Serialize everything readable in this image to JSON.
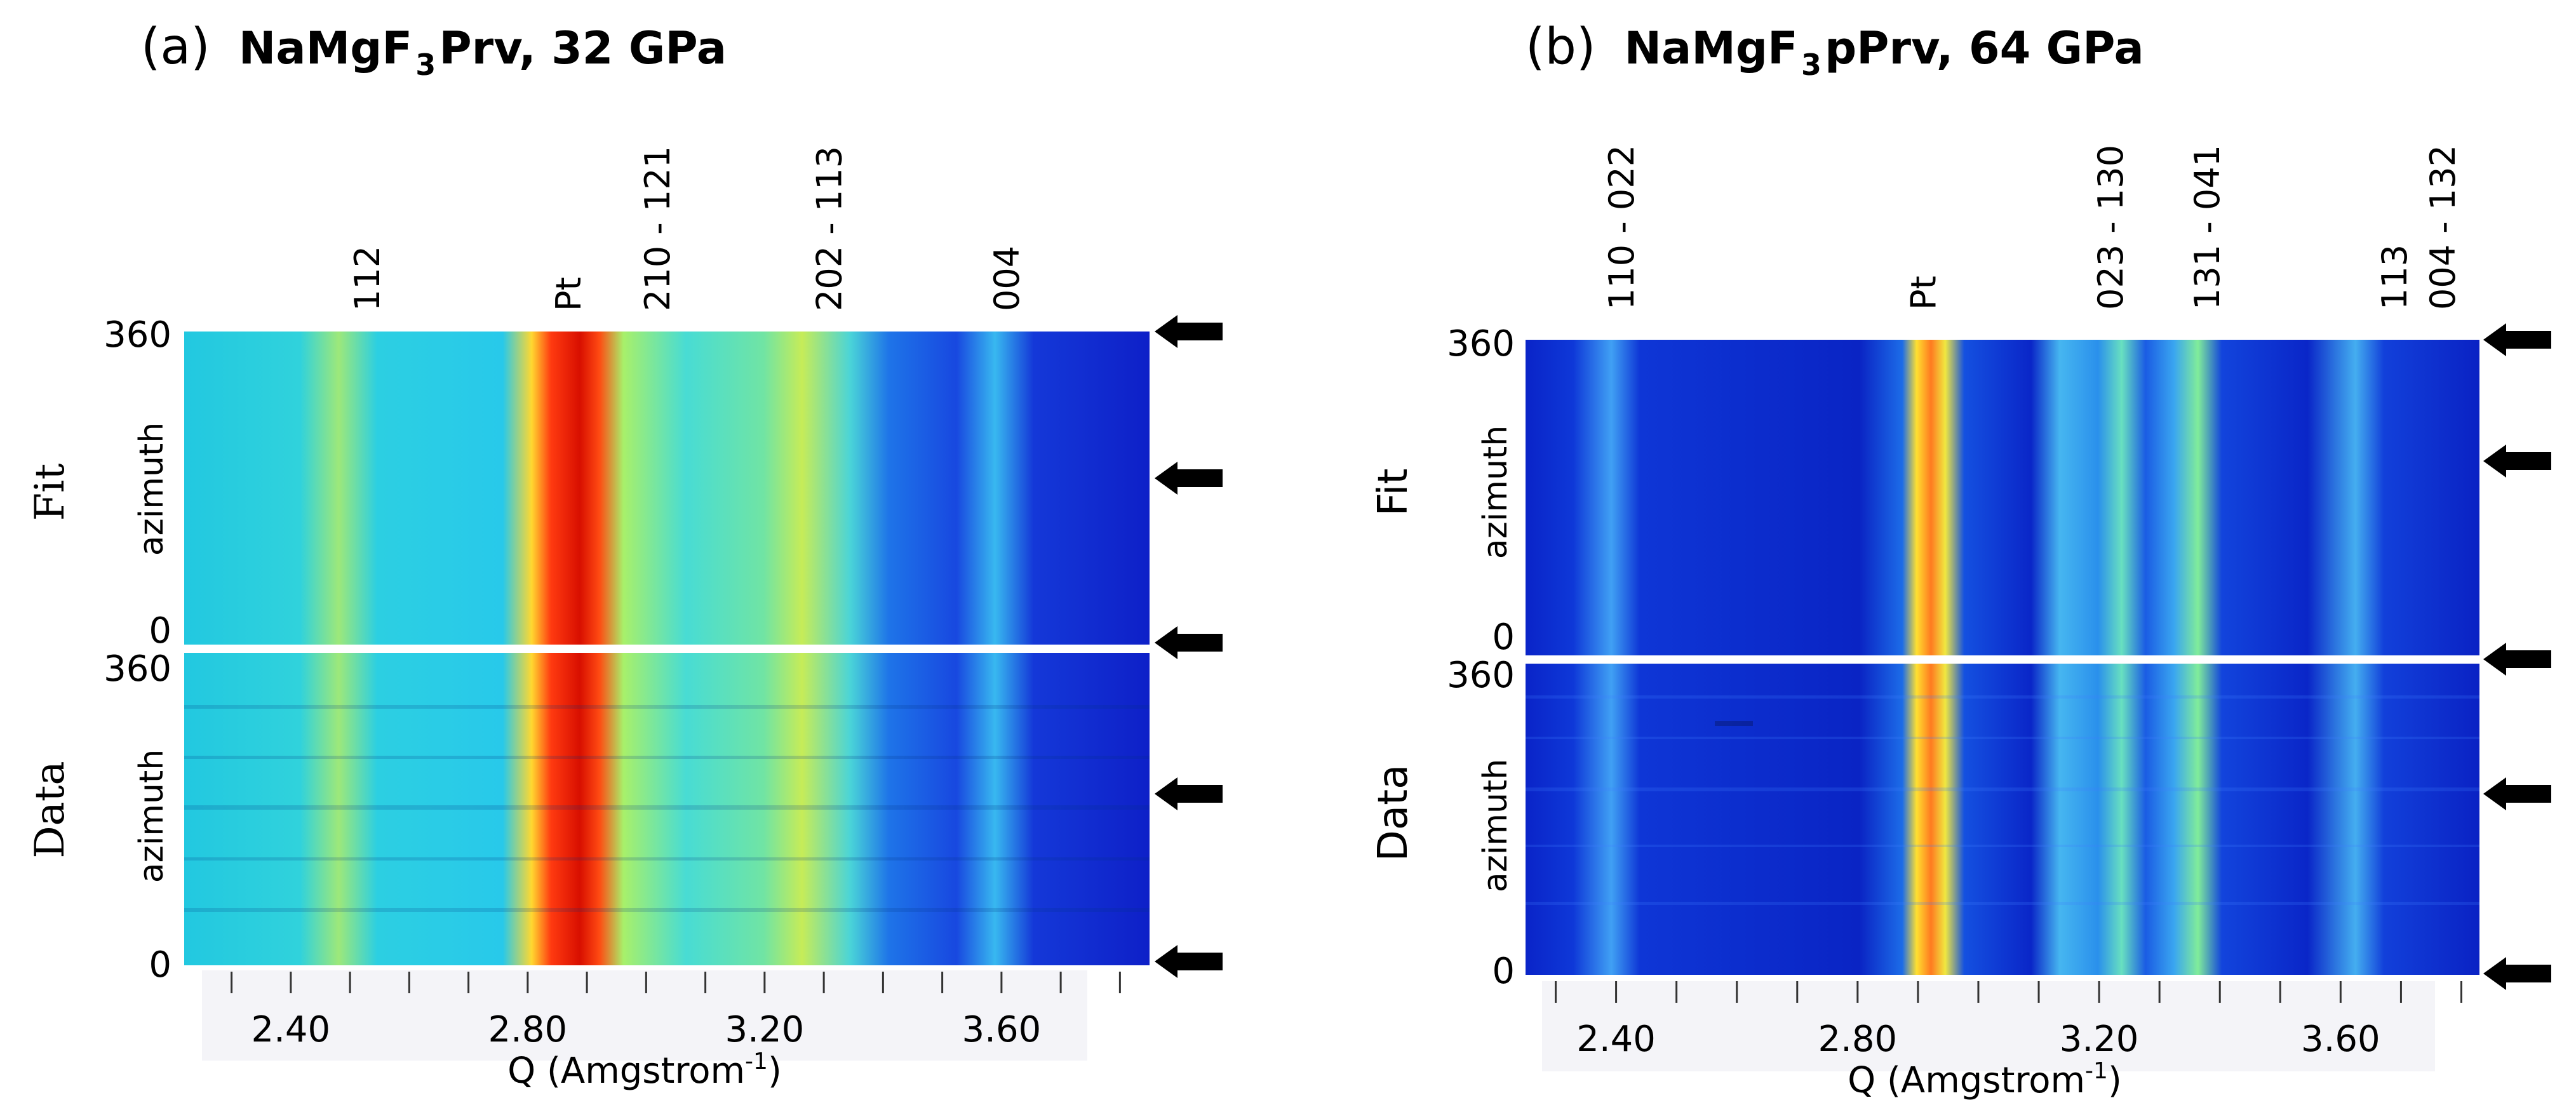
{
  "panels": [
    {
      "id": "a",
      "title_prefix": "(a)",
      "title_main": "NaMgF",
      "title_sub": "3",
      "title_rest": " Prv, 32 GPa",
      "peaks": [
        {
          "label": "112",
          "q": 2.53
        },
        {
          "label": "Pt",
          "q": 2.87
        },
        {
          "label": "210 - 121",
          "q": 3.02
        },
        {
          "label": "202 - 113",
          "q": 3.31
        },
        {
          "label": "004",
          "q": 3.61
        }
      ],
      "q_ticks": [
        {
          "label": "2.40",
          "q": 2.4
        },
        {
          "label": "2.80",
          "q": 2.8
        },
        {
          "label": "3.20",
          "q": 3.2
        },
        {
          "label": "3.60",
          "q": 3.6
        }
      ],
      "q_range": [
        2.22,
        3.85
      ],
      "x_axis_title": "Q (Amgstrom",
      "x_axis_sup": "-1",
      "x_axis_close": ")",
      "fit_label": "Fit",
      "data_label": "Data",
      "azimuth_label": "azimuth",
      "az_top": "360",
      "az_bottom": "0",
      "style": "cyan"
    },
    {
      "id": "b",
      "title_prefix": "(b)",
      "title_main": "NaMgF",
      "title_sub": "3",
      "title_rest": " pPrv, 64 GPa",
      "peaks": [
        {
          "label": "110 - 022",
          "q": 2.41
        },
        {
          "label": "Pt",
          "q": 2.91
        },
        {
          "label": "023 - 130",
          "q": 3.22
        },
        {
          "label": "131 - 041",
          "q": 3.38
        },
        {
          "label": "113",
          "q": 3.69
        },
        {
          "label": "004 - 132",
          "q": 3.77
        }
      ],
      "q_ticks": [
        {
          "label": "2.40",
          "q": 2.4
        },
        {
          "label": "2.80",
          "q": 2.8
        },
        {
          "label": "3.20",
          "q": 3.2
        },
        {
          "label": "3.60",
          "q": 3.6
        }
      ],
      "q_range": [
        2.25,
        3.83
      ],
      "x_axis_title": "Q (Amgstrom",
      "x_axis_sup": "-1",
      "x_axis_close": ")",
      "fit_label": "Fit",
      "data_label": "Data",
      "azimuth_label": "azimuth",
      "az_top": "360",
      "az_bottom": "0",
      "style": "blue"
    }
  ],
  "colors": {
    "background": "#ffffff",
    "divider": "#ffffff",
    "arrow": "#000000",
    "tick_band": "#f4f4f8"
  }
}
